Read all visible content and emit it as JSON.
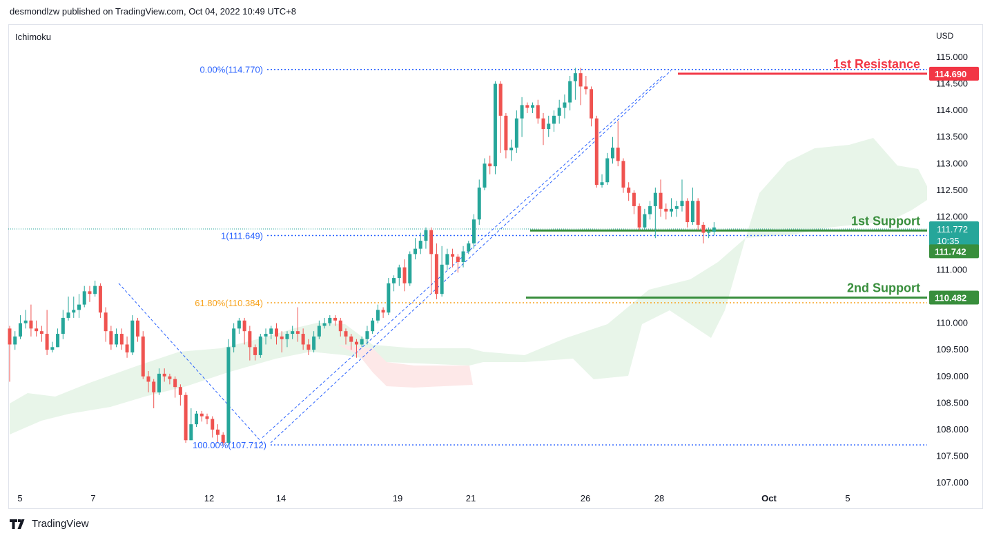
{
  "header": {
    "text": "desmondlzw published on TradingView.com, Oct 04, 2022 10:49 UTC+8"
  },
  "indicator": {
    "label": "Ichimoku"
  },
  "footer": {
    "brand": "TradingView"
  },
  "chart_data": {
    "type": "candlestick",
    "currency": "USD",
    "y_axis": {
      "ylim": [
        107.0,
        115.3
      ],
      "ticks": [
        "115.000",
        "114.500",
        "114.000",
        "113.500",
        "113.000",
        "112.500",
        "112.000",
        "111.500",
        "111.000",
        "110.500",
        "110.000",
        "109.500",
        "109.000",
        "108.500",
        "108.000",
        "107.500",
        "107.000"
      ]
    },
    "x_axis": {
      "labels": [
        "5",
        "7",
        "12",
        "14",
        "19",
        "21",
        "26",
        "28",
        "Oct",
        "5"
      ]
    },
    "fib_levels": [
      {
        "label": "0.00%(114.770)",
        "value": 114.77,
        "color": "#2962ff"
      },
      {
        "label": "1(111.649)",
        "value": 111.649,
        "color": "#2962ff"
      },
      {
        "label": "61.80%(110.384)",
        "value": 110.384,
        "color": "#f7a21b"
      },
      {
        "label": "100.00%(107.712)",
        "value": 107.712,
        "color": "#2962ff"
      }
    ],
    "levels": [
      {
        "name": "1st Resistance",
        "value": 114.69,
        "price_label": "114.690",
        "color": "#f23645"
      },
      {
        "name": "1st Support",
        "value": 111.742,
        "price_label": "111.742",
        "color": "#388e3c"
      },
      {
        "name": "2nd Support",
        "value": 110.482,
        "price_label": "110.482",
        "color": "#388e3c"
      }
    ],
    "last_price": {
      "value": 111.772,
      "label": "111.772",
      "countdown": "10:35",
      "color": "#26a69a"
    },
    "colors": {
      "up": "#26a69a",
      "down": "#ef5350",
      "cloud_bull": "#e8f5e9",
      "cloud_bear": "#fde8e8"
    },
    "candles": [
      [
        109.9,
        109.6,
        109.95,
        108.9
      ],
      [
        109.6,
        109.75,
        109.85,
        109.5
      ],
      [
        109.75,
        110.0,
        110.15,
        109.7
      ],
      [
        110.0,
        110.05,
        110.25,
        109.9
      ],
      [
        110.05,
        109.9,
        110.35,
        109.75
      ],
      [
        109.9,
        109.85,
        110.05,
        109.75
      ],
      [
        109.85,
        109.8,
        109.95,
        109.65
      ],
      [
        109.8,
        109.5,
        110.25,
        109.4
      ],
      [
        109.5,
        109.55,
        109.65,
        109.45
      ],
      [
        109.55,
        109.8,
        109.9,
        109.55
      ],
      [
        109.8,
        110.1,
        110.25,
        109.7
      ],
      [
        110.1,
        110.2,
        110.5,
        110.05
      ],
      [
        110.2,
        110.25,
        110.5,
        110.1
      ],
      [
        110.25,
        110.35,
        110.55,
        110.1
      ],
      [
        110.35,
        110.6,
        110.7,
        110.3
      ],
      [
        110.6,
        110.55,
        110.7,
        110.4
      ],
      [
        110.55,
        110.7,
        110.8,
        110.5
      ],
      [
        110.7,
        110.2,
        110.75,
        110.1
      ],
      [
        110.2,
        109.85,
        110.3,
        109.65
      ],
      [
        109.85,
        109.6,
        109.95,
        109.5
      ],
      [
        109.6,
        109.8,
        109.9,
        109.55
      ],
      [
        109.8,
        109.6,
        109.9,
        109.5
      ],
      [
        109.6,
        109.45,
        109.75,
        109.35
      ],
      [
        109.45,
        110.05,
        110.15,
        109.4
      ],
      [
        110.05,
        109.75,
        110.1,
        109.65
      ],
      [
        109.75,
        109.0,
        109.85,
        108.95
      ],
      [
        109.0,
        108.9,
        109.1,
        108.7
      ],
      [
        108.9,
        108.7,
        108.95,
        108.4
      ],
      [
        108.7,
        109.05,
        109.15,
        108.65
      ],
      [
        109.05,
        109.0,
        109.15,
        108.9
      ],
      [
        109.0,
        108.95,
        109.05,
        108.85
      ],
      [
        108.95,
        108.8,
        109.0,
        108.6
      ],
      [
        108.8,
        108.65,
        108.85,
        108.45
      ],
      [
        108.65,
        107.8,
        108.7,
        107.75
      ],
      [
        107.8,
        108.1,
        108.4,
        107.8
      ],
      [
        108.1,
        108.3,
        108.35,
        108.05
      ],
      [
        108.3,
        108.25,
        108.35,
        108.15
      ],
      [
        108.25,
        108.2,
        108.3,
        108.1
      ],
      [
        108.2,
        108.0,
        108.25,
        107.85
      ],
      [
        108.0,
        107.9,
        108.1,
        107.75
      ],
      [
        107.9,
        107.75,
        107.95,
        107.7
      ],
      [
        107.75,
        109.55,
        109.7,
        107.7
      ],
      [
        109.55,
        109.9,
        110.0,
        109.45
      ],
      [
        109.9,
        110.05,
        110.1,
        109.8
      ],
      [
        110.05,
        109.85,
        110.1,
        109.6
      ],
      [
        109.85,
        109.55,
        109.95,
        109.3
      ],
      [
        109.55,
        109.4,
        109.6,
        109.3
      ],
      [
        109.4,
        109.75,
        109.8,
        109.35
      ],
      [
        109.75,
        109.8,
        109.9,
        109.6
      ],
      [
        109.8,
        109.9,
        109.95,
        109.7
      ],
      [
        109.9,
        109.75,
        110.0,
        109.6
      ],
      [
        109.75,
        109.7,
        109.85,
        109.45
      ],
      [
        109.7,
        109.8,
        109.85,
        109.55
      ],
      [
        109.8,
        109.85,
        109.95,
        109.7
      ],
      [
        109.85,
        109.8,
        110.3,
        109.65
      ],
      [
        109.8,
        109.6,
        109.9,
        109.5
      ],
      [
        109.6,
        109.5,
        109.7,
        109.4
      ],
      [
        109.5,
        109.75,
        109.85,
        109.45
      ],
      [
        109.75,
        109.95,
        110.05,
        109.7
      ],
      [
        109.95,
        110.0,
        110.1,
        109.9
      ],
      [
        110.0,
        110.1,
        110.15,
        109.95
      ],
      [
        110.1,
        110.05,
        110.15,
        109.95
      ],
      [
        110.05,
        109.85,
        110.1,
        109.75
      ],
      [
        109.85,
        109.75,
        109.9,
        109.6
      ],
      [
        109.75,
        109.65,
        109.8,
        109.5
      ],
      [
        109.65,
        109.6,
        109.7,
        109.35
      ],
      [
        109.6,
        109.7,
        109.75,
        109.55
      ],
      [
        109.7,
        109.85,
        109.95,
        109.6
      ],
      [
        109.85,
        110.05,
        110.1,
        109.8
      ],
      [
        110.05,
        110.25,
        110.35,
        110.0
      ],
      [
        110.25,
        110.2,
        110.3,
        110.1
      ],
      [
        110.2,
        110.75,
        110.85,
        110.15
      ],
      [
        110.75,
        110.85,
        110.9,
        110.6
      ],
      [
        110.85,
        111.05,
        111.1,
        110.7
      ],
      [
        111.05,
        110.75,
        111.2,
        110.6
      ],
      [
        110.75,
        111.3,
        111.35,
        110.7
      ],
      [
        111.3,
        111.4,
        111.6,
        111.2
      ],
      [
        111.4,
        111.55,
        111.7,
        111.3
      ],
      [
        111.55,
        111.75,
        111.8,
        111.4
      ],
      [
        111.75,
        111.3,
        111.8,
        110.55
      ],
      [
        111.3,
        110.55,
        111.5,
        110.45
      ],
      [
        110.55,
        111.1,
        111.45,
        110.5
      ],
      [
        111.1,
        111.3,
        111.4,
        111.0
      ],
      [
        111.3,
        111.25,
        111.4,
        111.05
      ],
      [
        111.25,
        111.15,
        111.3,
        110.95
      ],
      [
        111.15,
        111.35,
        111.45,
        111.05
      ],
      [
        111.35,
        111.5,
        111.55,
        111.3
      ],
      [
        111.5,
        111.95,
        112.05,
        111.4
      ],
      [
        111.95,
        112.55,
        112.7,
        111.85
      ],
      [
        112.55,
        113.0,
        113.1,
        112.5
      ],
      [
        113.0,
        112.95,
        113.15,
        112.8
      ],
      [
        112.95,
        114.5,
        114.55,
        112.8
      ],
      [
        114.5,
        113.9,
        114.55,
        113.2
      ],
      [
        113.9,
        113.25,
        113.95,
        113.1
      ],
      [
        113.25,
        113.3,
        113.45,
        113.05
      ],
      [
        113.3,
        113.85,
        114.0,
        113.2
      ],
      [
        113.85,
        114.1,
        114.25,
        113.5
      ],
      [
        114.1,
        114.05,
        114.15,
        113.95
      ],
      [
        114.05,
        114.1,
        114.15,
        113.95
      ],
      [
        114.1,
        113.85,
        114.2,
        113.75
      ],
      [
        113.85,
        113.65,
        113.95,
        113.35
      ],
      [
        113.65,
        113.75,
        113.9,
        113.5
      ],
      [
        113.75,
        113.9,
        114.0,
        113.6
      ],
      [
        113.9,
        114.05,
        114.2,
        113.75
      ],
      [
        114.05,
        114.15,
        114.3,
        113.85
      ],
      [
        114.15,
        114.55,
        114.65,
        114.0
      ],
      [
        114.55,
        114.7,
        114.8,
        114.2
      ],
      [
        114.7,
        114.45,
        114.8,
        114.1
      ],
      [
        114.45,
        114.4,
        114.65,
        114.3
      ],
      [
        114.4,
        113.85,
        114.45,
        113.7
      ],
      [
        113.85,
        112.6,
        113.9,
        112.55
      ],
      [
        112.6,
        112.65,
        112.8,
        112.55
      ],
      [
        112.65,
        113.1,
        113.2,
        112.6
      ],
      [
        113.1,
        113.3,
        113.5,
        113.0
      ],
      [
        113.3,
        113.05,
        113.8,
        112.95
      ],
      [
        113.05,
        112.55,
        113.1,
        112.45
      ],
      [
        112.55,
        112.45,
        112.65,
        112.3
      ],
      [
        112.45,
        112.2,
        112.5,
        112.05
      ],
      [
        112.2,
        111.8,
        112.25,
        111.75
      ],
      [
        111.8,
        112.05,
        112.15,
        111.75
      ],
      [
        112.05,
        112.2,
        112.3,
        111.95
      ],
      [
        112.2,
        112.45,
        112.55,
        111.6
      ],
      [
        112.45,
        112.15,
        112.7,
        112.0
      ],
      [
        112.15,
        112.1,
        112.25,
        111.95
      ],
      [
        112.1,
        112.15,
        112.35,
        112.0
      ],
      [
        112.15,
        112.2,
        112.3,
        112.0
      ],
      [
        112.2,
        112.3,
        112.7,
        112.1
      ],
      [
        112.3,
        111.9,
        112.35,
        111.8
      ],
      [
        111.9,
        112.3,
        112.55,
        111.85
      ],
      [
        112.3,
        111.85,
        112.35,
        111.75
      ],
      [
        111.85,
        111.7,
        111.9,
        111.5
      ],
      [
        111.7,
        111.72,
        111.8,
        111.6
      ],
      [
        111.72,
        111.8,
        111.9,
        111.65
      ]
    ]
  }
}
